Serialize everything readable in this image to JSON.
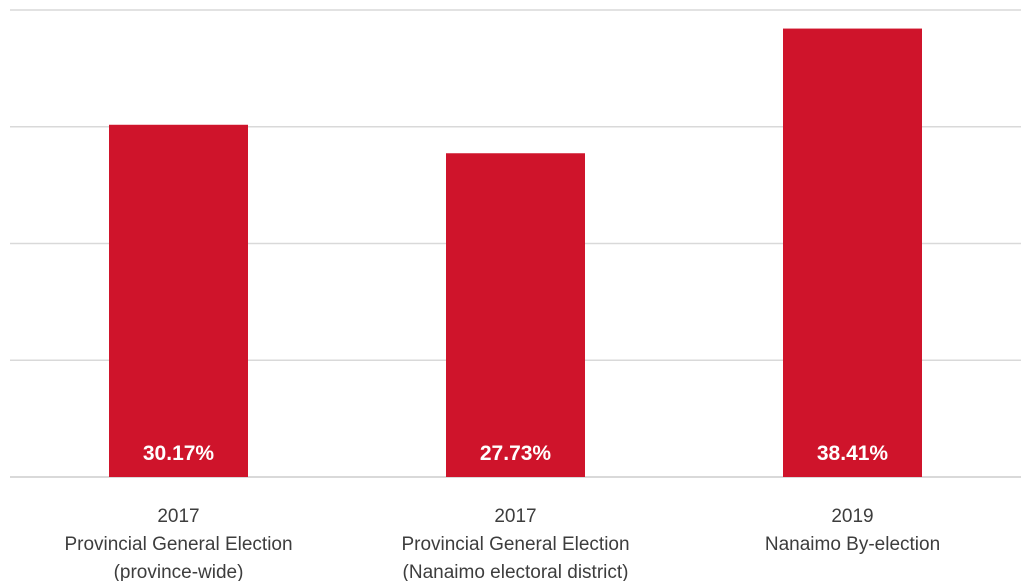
{
  "chart_data": {
    "type": "bar",
    "title": "",
    "xlabel": "",
    "ylabel": "",
    "ylim": [
      0,
      40
    ],
    "grid": true,
    "legend": "none",
    "colors": {
      "bar": "#cf142b",
      "grid": "#d9d9d9",
      "value_text": "#ffffff",
      "category_text": "#3d3d3d"
    },
    "categories": [
      [
        "2017",
        "Provincial General Election",
        "(province-wide)"
      ],
      [
        "2017",
        "Provincial General Election",
        "(Nanaimo electoral district)"
      ],
      [
        "2019",
        "Nanaimo By-election"
      ]
    ],
    "values": [
      30.17,
      27.73,
      38.41
    ],
    "value_labels": [
      "30.17%",
      "27.73%",
      "38.41%"
    ]
  }
}
